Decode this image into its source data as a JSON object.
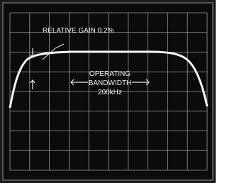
{
  "annotations": {
    "gain": "RELATIVE GAIN 0.2%",
    "operating": "OPERATING",
    "bandwidth": "BANDWIDTH",
    "frequency": "200kHz"
  }
}
